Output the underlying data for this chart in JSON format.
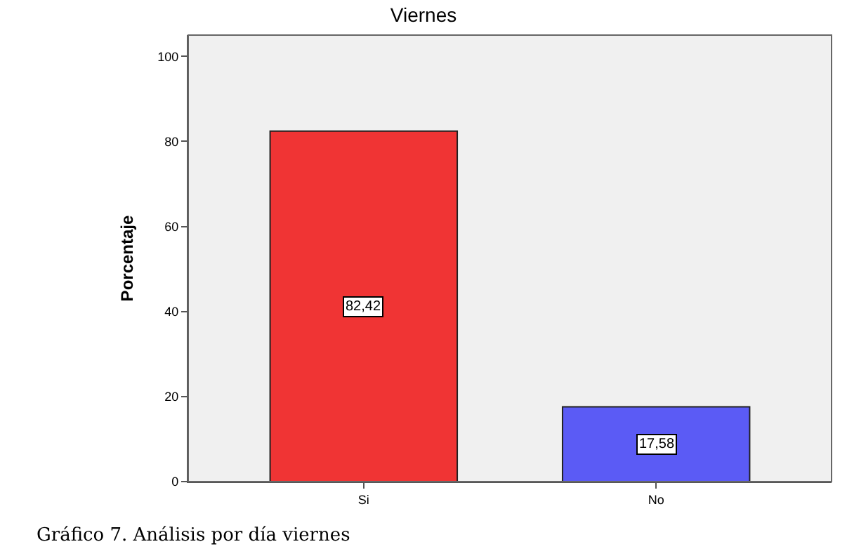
{
  "chart_data": {
    "type": "bar",
    "title": "Viernes",
    "ylabel": "Porcentaje",
    "categories": [
      "Si",
      "No"
    ],
    "values": [
      82.42,
      17.58
    ],
    "colors": [
      "#f03434",
      "#5b5bf5"
    ],
    "value_labels": [
      "82,42",
      "17,58"
    ],
    "ylim": [
      0,
      105
    ],
    "yticks": [
      0,
      20,
      40,
      60,
      80,
      100
    ],
    "grid": false,
    "annotations": [
      "Gráfico 7. Análisis por día viernes"
    ]
  }
}
